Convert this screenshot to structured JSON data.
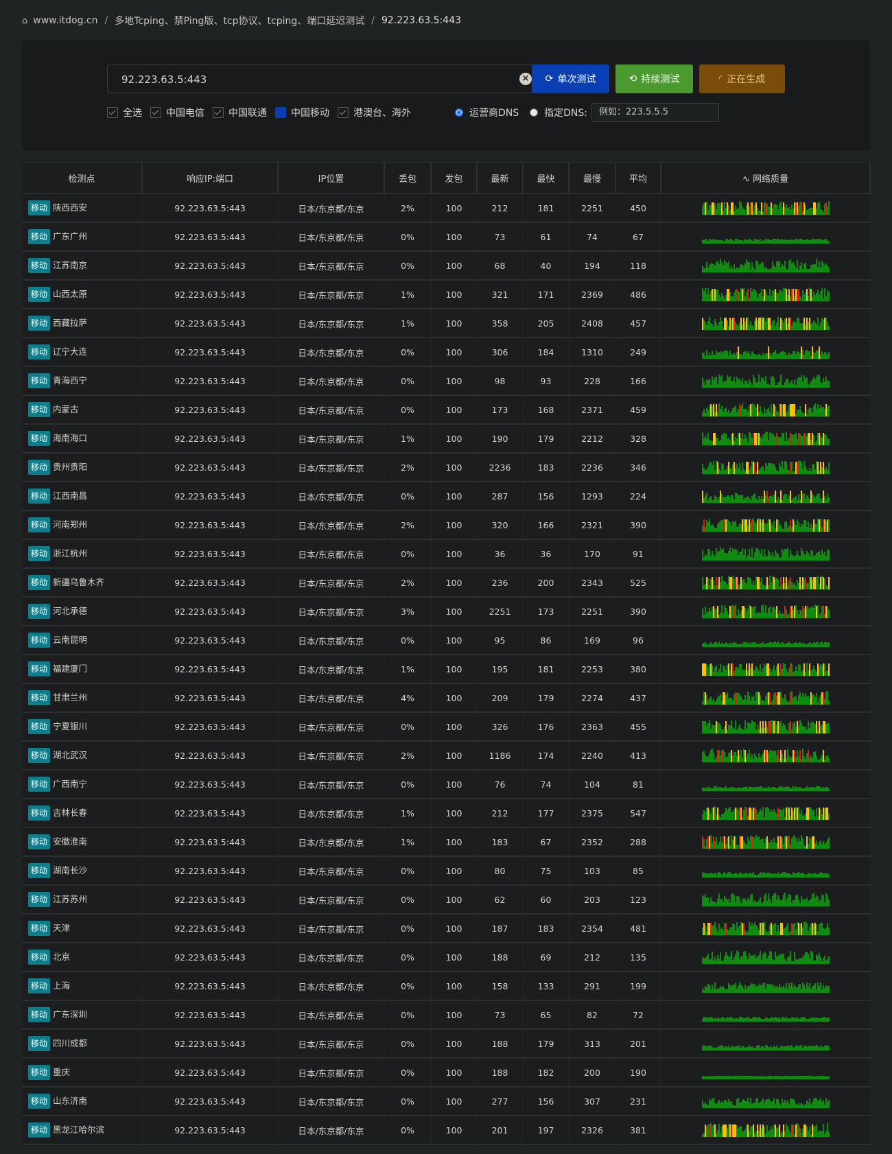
{
  "breadcrumb": {
    "home": "www.itdog.cn",
    "separator": "/",
    "section": "多地Tcping、禁Ping版、tcp协议、tcping、端口延迟测试",
    "current": "92.223.63.5:443"
  },
  "search": {
    "value": "92.223.63.5:443",
    "clear_icon": "close-circle-icon"
  },
  "buttons": {
    "single": "单次测试",
    "continuous": "持续测试",
    "generating": "正在生成"
  },
  "filters": {
    "all": "全选",
    "telecom": "中国电信",
    "unicom": "中国联通",
    "mobile": "中国移动",
    "overseas": "港澳台、海外"
  },
  "dns": {
    "isp_label": "运营商DNS",
    "custom_label": "指定DNS:",
    "placeholder": "例如：223.5.5.5"
  },
  "colors": {
    "good": "#118a11",
    "warn": "#ffc000",
    "bad": "#e01c0c",
    "tag": "#0e7e8c",
    "primary": "#0a3fb4"
  },
  "table": {
    "headers": [
      "检测点",
      "响应IP:端口",
      "IP位置",
      "丢包",
      "发包",
      "最新",
      "最快",
      "最慢",
      "平均",
      "网络质量"
    ],
    "quality_icon": "activity-icon",
    "rows": [
      {
        "isp": "移动",
        "node": "陕西西安",
        "ip": "92.223.63.5:443",
        "loc": "日本/东京都/东京",
        "loss": "2%",
        "sent": "100",
        "latest": "212",
        "min": "181",
        "max": "2251",
        "avg": "450"
      },
      {
        "isp": "移动",
        "node": "广东广州",
        "ip": "92.223.63.5:443",
        "loc": "日本/东京都/东京",
        "loss": "0%",
        "sent": "100",
        "latest": "73",
        "min": "61",
        "max": "74",
        "avg": "67"
      },
      {
        "isp": "移动",
        "node": "江苏南京",
        "ip": "92.223.63.5:443",
        "loc": "日本/东京都/东京",
        "loss": "0%",
        "sent": "100",
        "latest": "68",
        "min": "40",
        "max": "194",
        "avg": "118"
      },
      {
        "isp": "移动",
        "node": "山西太原",
        "ip": "92.223.63.5:443",
        "loc": "日本/东京都/东京",
        "loss": "1%",
        "sent": "100",
        "latest": "321",
        "min": "171",
        "max": "2369",
        "avg": "486"
      },
      {
        "isp": "移动",
        "node": "西藏拉萨",
        "ip": "92.223.63.5:443",
        "loc": "日本/东京都/东京",
        "loss": "1%",
        "sent": "100",
        "latest": "358",
        "min": "205",
        "max": "2408",
        "avg": "457"
      },
      {
        "isp": "移动",
        "node": "辽宁大连",
        "ip": "92.223.63.5:443",
        "loc": "日本/东京都/东京",
        "loss": "0%",
        "sent": "100",
        "latest": "306",
        "min": "184",
        "max": "1310",
        "avg": "249"
      },
      {
        "isp": "移动",
        "node": "青海西宁",
        "ip": "92.223.63.5:443",
        "loc": "日本/东京都/东京",
        "loss": "0%",
        "sent": "100",
        "latest": "98",
        "min": "93",
        "max": "228",
        "avg": "166"
      },
      {
        "isp": "移动",
        "node": "内蒙古",
        "ip": "92.223.63.5:443",
        "loc": "日本/东京都/东京",
        "loss": "0%",
        "sent": "100",
        "latest": "173",
        "min": "168",
        "max": "2371",
        "avg": "459"
      },
      {
        "isp": "移动",
        "node": "海南海口",
        "ip": "92.223.63.5:443",
        "loc": "日本/东京都/东京",
        "loss": "1%",
        "sent": "100",
        "latest": "190",
        "min": "179",
        "max": "2212",
        "avg": "328"
      },
      {
        "isp": "移动",
        "node": "贵州贵阳",
        "ip": "92.223.63.5:443",
        "loc": "日本/东京都/东京",
        "loss": "2%",
        "sent": "100",
        "latest": "2236",
        "min": "183",
        "max": "2236",
        "avg": "346"
      },
      {
        "isp": "移动",
        "node": "江西南昌",
        "ip": "92.223.63.5:443",
        "loc": "日本/东京都/东京",
        "loss": "0%",
        "sent": "100",
        "latest": "287",
        "min": "156",
        "max": "1293",
        "avg": "224"
      },
      {
        "isp": "移动",
        "node": "河南郑州",
        "ip": "92.223.63.5:443",
        "loc": "日本/东京都/东京",
        "loss": "2%",
        "sent": "100",
        "latest": "320",
        "min": "166",
        "max": "2321",
        "avg": "390"
      },
      {
        "isp": "移动",
        "node": "浙江杭州",
        "ip": "92.223.63.5:443",
        "loc": "日本/东京都/东京",
        "loss": "0%",
        "sent": "100",
        "latest": "36",
        "min": "36",
        "max": "170",
        "avg": "91"
      },
      {
        "isp": "移动",
        "node": "新疆乌鲁木齐",
        "ip": "92.223.63.5:443",
        "loc": "日本/东京都/东京",
        "loss": "2%",
        "sent": "100",
        "latest": "236",
        "min": "200",
        "max": "2343",
        "avg": "525"
      },
      {
        "isp": "移动",
        "node": "河北承德",
        "ip": "92.223.63.5:443",
        "loc": "日本/东京都/东京",
        "loss": "3%",
        "sent": "100",
        "latest": "2251",
        "min": "173",
        "max": "2251",
        "avg": "390"
      },
      {
        "isp": "移动",
        "node": "云南昆明",
        "ip": "92.223.63.5:443",
        "loc": "日本/东京都/东京",
        "loss": "0%",
        "sent": "100",
        "latest": "95",
        "min": "86",
        "max": "169",
        "avg": "96"
      },
      {
        "isp": "移动",
        "node": "福建厦门",
        "ip": "92.223.63.5:443",
        "loc": "日本/东京都/东京",
        "loss": "1%",
        "sent": "100",
        "latest": "195",
        "min": "181",
        "max": "2253",
        "avg": "380"
      },
      {
        "isp": "移动",
        "node": "甘肃兰州",
        "ip": "92.223.63.5:443",
        "loc": "日本/东京都/东京",
        "loss": "4%",
        "sent": "100",
        "latest": "209",
        "min": "179",
        "max": "2274",
        "avg": "437"
      },
      {
        "isp": "移动",
        "node": "宁夏银川",
        "ip": "92.223.63.5:443",
        "loc": "日本/东京都/东京",
        "loss": "0%",
        "sent": "100",
        "latest": "326",
        "min": "176",
        "max": "2363",
        "avg": "455"
      },
      {
        "isp": "移动",
        "node": "湖北武汉",
        "ip": "92.223.63.5:443",
        "loc": "日本/东京都/东京",
        "loss": "2%",
        "sent": "100",
        "latest": "1186",
        "min": "174",
        "max": "2240",
        "avg": "413"
      },
      {
        "isp": "移动",
        "node": "广西南宁",
        "ip": "92.223.63.5:443",
        "loc": "日本/东京都/东京",
        "loss": "0%",
        "sent": "100",
        "latest": "76",
        "min": "74",
        "max": "104",
        "avg": "81"
      },
      {
        "isp": "移动",
        "node": "吉林长春",
        "ip": "92.223.63.5:443",
        "loc": "日本/东京都/东京",
        "loss": "1%",
        "sent": "100",
        "latest": "212",
        "min": "177",
        "max": "2375",
        "avg": "547"
      },
      {
        "isp": "移动",
        "node": "安徽淮南",
        "ip": "92.223.63.5:443",
        "loc": "日本/东京都/东京",
        "loss": "1%",
        "sent": "100",
        "latest": "183",
        "min": "67",
        "max": "2352",
        "avg": "288"
      },
      {
        "isp": "移动",
        "node": "湖南长沙",
        "ip": "92.223.63.5:443",
        "loc": "日本/东京都/东京",
        "loss": "0%",
        "sent": "100",
        "latest": "80",
        "min": "75",
        "max": "103",
        "avg": "85"
      },
      {
        "isp": "移动",
        "node": "江苏苏州",
        "ip": "92.223.63.5:443",
        "loc": "日本/东京都/东京",
        "loss": "0%",
        "sent": "100",
        "latest": "62",
        "min": "60",
        "max": "203",
        "avg": "123"
      },
      {
        "isp": "移动",
        "node": "天津",
        "ip": "92.223.63.5:443",
        "loc": "日本/东京都/东京",
        "loss": "0%",
        "sent": "100",
        "latest": "187",
        "min": "183",
        "max": "2354",
        "avg": "481"
      },
      {
        "isp": "移动",
        "node": "北京",
        "ip": "92.223.63.5:443",
        "loc": "日本/东京都/东京",
        "loss": "0%",
        "sent": "100",
        "latest": "188",
        "min": "69",
        "max": "212",
        "avg": "135"
      },
      {
        "isp": "移动",
        "node": "上海",
        "ip": "92.223.63.5:443",
        "loc": "日本/东京都/东京",
        "loss": "0%",
        "sent": "100",
        "latest": "158",
        "min": "133",
        "max": "291",
        "avg": "199"
      },
      {
        "isp": "移动",
        "node": "广东深圳",
        "ip": "92.223.63.5:443",
        "loc": "日本/东京都/东京",
        "loss": "0%",
        "sent": "100",
        "latest": "73",
        "min": "65",
        "max": "82",
        "avg": "72"
      },
      {
        "isp": "移动",
        "node": "四川成都",
        "ip": "92.223.63.5:443",
        "loc": "日本/东京都/东京",
        "loss": "0%",
        "sent": "100",
        "latest": "188",
        "min": "179",
        "max": "313",
        "avg": "201"
      },
      {
        "isp": "移动",
        "node": "重庆",
        "ip": "92.223.63.5:443",
        "loc": "日本/东京都/东京",
        "loss": "0%",
        "sent": "100",
        "latest": "188",
        "min": "182",
        "max": "200",
        "avg": "190"
      },
      {
        "isp": "移动",
        "node": "山东济南",
        "ip": "92.223.63.5:443",
        "loc": "日本/东京都/东京",
        "loss": "0%",
        "sent": "100",
        "latest": "277",
        "min": "156",
        "max": "307",
        "avg": "231"
      },
      {
        "isp": "移动",
        "node": "黑龙江哈尔滨",
        "ip": "92.223.63.5:443",
        "loc": "日本/东京都/东京",
        "loss": "0%",
        "sent": "100",
        "latest": "201",
        "min": "197",
        "max": "2326",
        "avg": "381"
      }
    ]
  }
}
